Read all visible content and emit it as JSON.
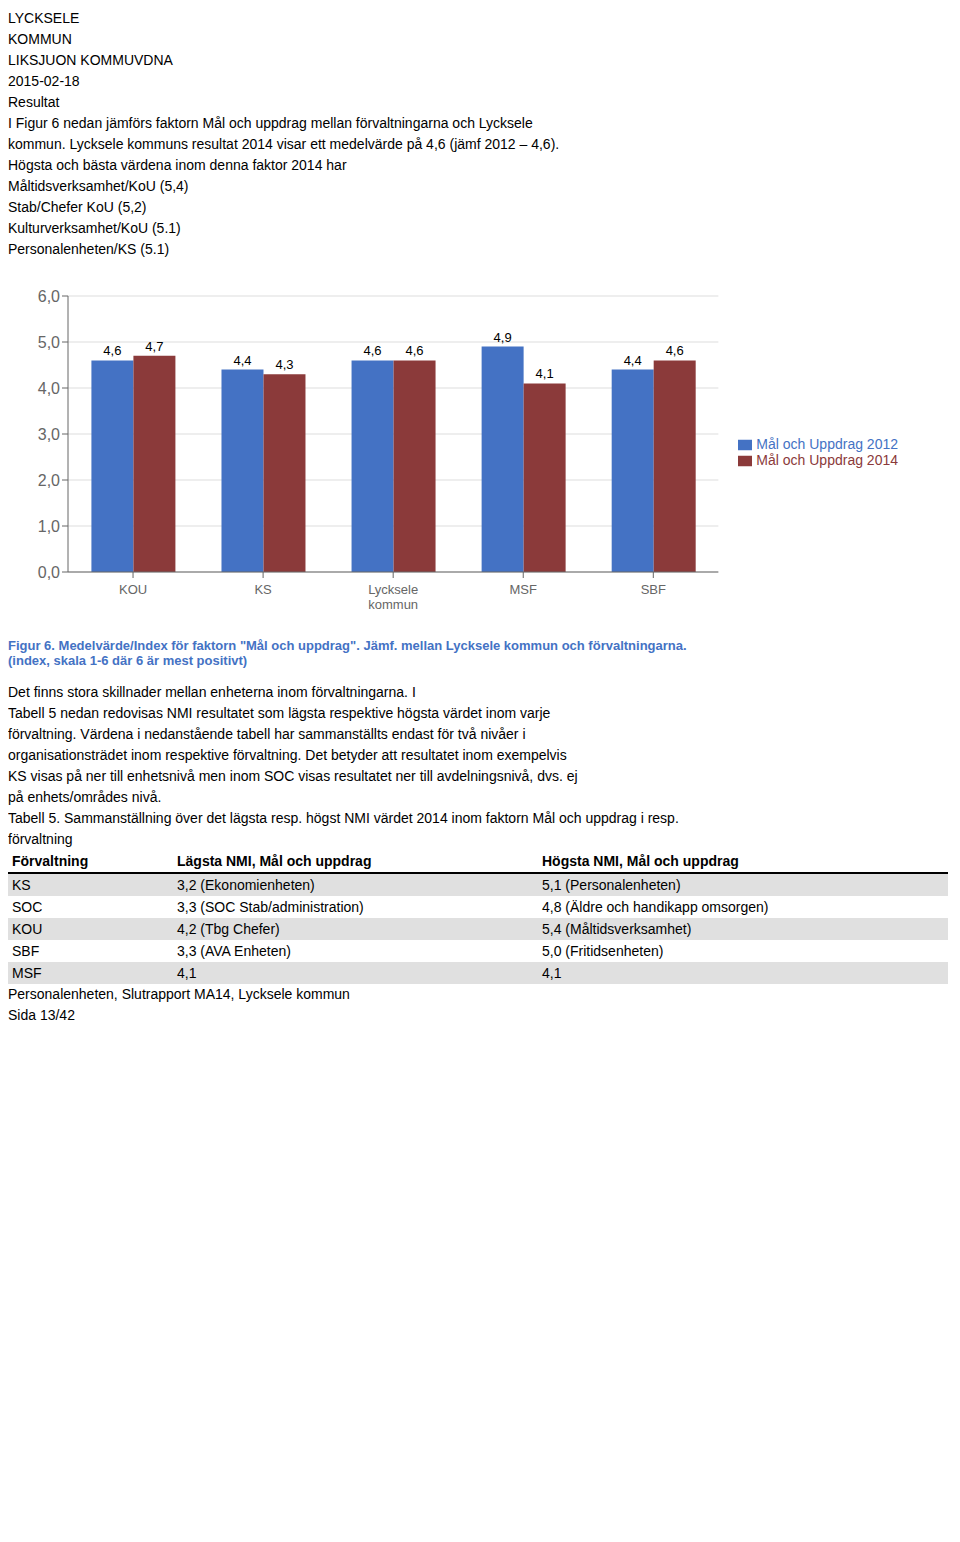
{
  "chart_data": {
    "type": "bar",
    "title": "Figur 6. Medelvärde/Index för faktorn \"Mål och uppdrag\". Jämf. mellan Lycksele kommun och förvaltningarna.",
    "subtitle": "(index, skala 1-6 där 6 är mest positivt)",
    "categories": [
      "KOU",
      "KS",
      "Lycksele\nkommun",
      "MSF",
      "SBF"
    ],
    "series": [
      {
        "name": "Mål och Uppdrag 2012",
        "color": "#4472C4",
        "values": [
          4.6,
          4.4,
          4.6,
          4.9,
          4.4
        ],
        "value_labels": [
          "4,6",
          "4,4",
          "4,6",
          "4,9",
          "4,4"
        ]
      },
      {
        "name": "Mål och Uppdrag 2014",
        "color": "#8B3A3A",
        "values": [
          4.7,
          4.3,
          4.6,
          4.1,
          4.6
        ],
        "value_labels": [
          "4,7",
          "4,3",
          "4,6",
          "4,1",
          "4,6"
        ]
      }
    ],
    "ylim": [
      0,
      6
    ],
    "yticks": [
      {
        "value": 0,
        "label": "0,0"
      },
      {
        "value": 1,
        "label": "1,0"
      },
      {
        "value": 2,
        "label": "2,0"
      },
      {
        "value": 3,
        "label": "3,0"
      },
      {
        "value": 4,
        "label": "4,0"
      },
      {
        "value": 5,
        "label": "5,0"
      },
      {
        "value": 6,
        "label": "6,0"
      }
    ],
    "grid": true,
    "legend": "right",
    "data_labels": true,
    "annotations": [
      "LYCKSELE",
      "KOMMUN",
      "LIKSJUON KOMMUVDNA",
      "2015-02-18",
      "Resultat",
      "I Figur 6 nedan jämförs faktorn Mål och uppdrag mellan förvaltningarna och Lycksele",
      "kommun. Lycksele kommuns resultat 2014 visar ett medelvärde på 4,6 (jämf 2012 – 4,6).",
      "Högsta och bästa värdena inom denna faktor 2014 har",
      "Måltidsverksamhet/KoU (5,4)",
      "Stab/Chefer KoU (5,2)",
      "Kulturverksamhet/KoU (5.1)",
      "Personalenheten/KS (5.1)",
      "Det finns stora skillnader mellan enheterna inom förvaltningarna. I",
      "Tabell 5 nedan redovisas NMI resultatet som lägsta respektive högsta värdet inom varje",
      "förvaltning. Värdena i nedanstående tabell har sammanställts endast för två nivåer i",
      "organisationsträdet inom respektive förvaltning.  Det betyder att resultatet inom exempelvis",
      "KS visas på ner till enhetsnivå men inom SOC visas resultatet ner till avdelningsnivå, dvs. ej",
      "på enhets/områdes nivå.",
      "Tabell 5. Sammanställning över det lägsta resp. högst NMI värdet 2014 inom faktorn Mål och uppdrag i resp.",
      "förvaltning",
      [
        "Förvaltning",
        "Lägsta NMI, Mål och uppdrag",
        "Högsta NMI, Mål och uppdrag"
      ],
      [
        "KS",
        "3,2 (Ekonomienheten)",
        "5,1 (Personalenheten)"
      ],
      [
        "SOC",
        "3,3 (SOC Stab/administration)",
        "4,8 (Äldre och handikapp omsorgen)"
      ],
      [
        "KOU",
        "4,2 (Tbg Chefer)",
        "5,4 (Måltidsverksamhet)"
      ],
      [
        "SBF",
        "3,3 (AVA Enheten)",
        "5,0 (Fritidsenheten)"
      ],
      [
        "MSF",
        "4,1",
        "4,1"
      ],
      "Personalenheten, Slutrapport MA14, Lycksele kommun",
      "Sida 13/42"
    ]
  }
}
